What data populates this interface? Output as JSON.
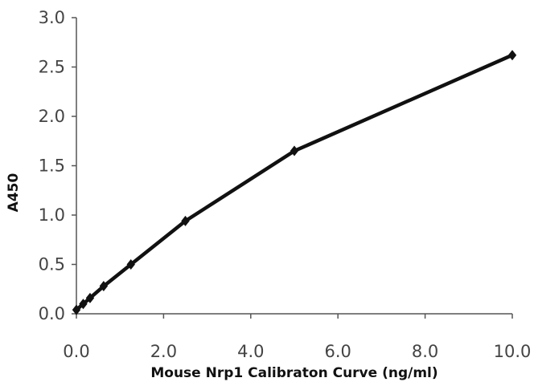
{
  "chart_data": {
    "type": "line",
    "title": "",
    "xlabel": "Mouse Nrp1 Calibraton Curve (ng/ml)",
    "ylabel": "A450",
    "xlim": [
      0,
      10
    ],
    "ylim": [
      0,
      3
    ],
    "x_ticks": [
      "0.0",
      "2.0",
      "4.0",
      "6.0",
      "8.0",
      "10.0"
    ],
    "y_ticks": [
      "0.0",
      "0.5",
      "1.0",
      "1.5",
      "2.0",
      "2.5",
      "3.0"
    ],
    "grid": false,
    "series": [
      {
        "x": [
          0,
          0.156,
          0.313,
          0.625,
          1.25,
          2.5,
          5,
          10
        ],
        "y": [
          0.04,
          0.1,
          0.16,
          0.28,
          0.5,
          0.94,
          1.65,
          2.62
        ],
        "marker": "diamond",
        "color": "#111111"
      }
    ]
  }
}
